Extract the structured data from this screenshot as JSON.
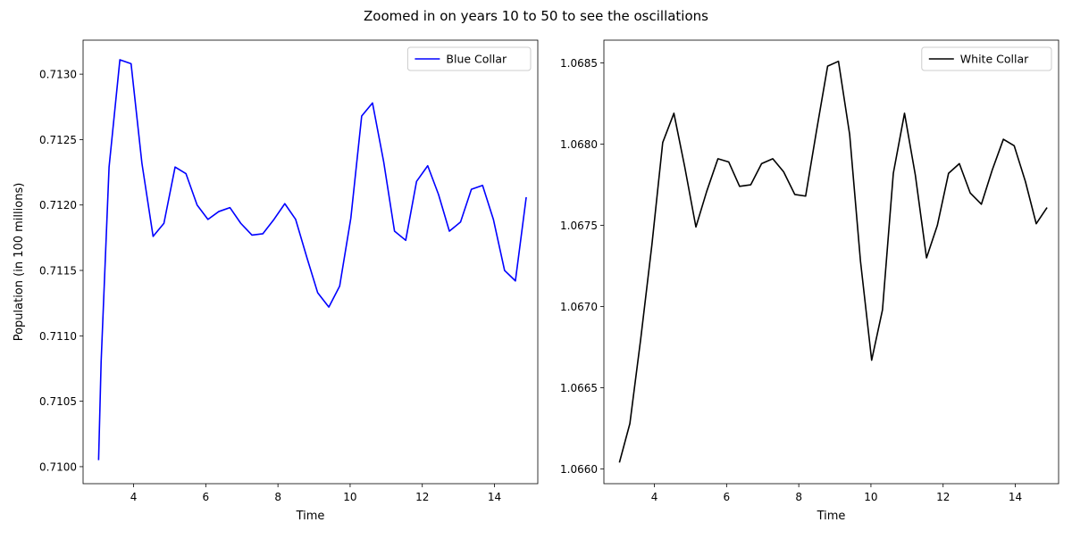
{
  "figure": {
    "suptitle": "Zoomed in on years 10 to 50 to see the oscillations"
  },
  "chart_data": [
    {
      "type": "line",
      "title": "",
      "xlabel": "Time",
      "ylabel": "Population (in 100 millions)",
      "xlim": [
        2.6,
        15.2
      ],
      "ylim": [
        0.70987,
        0.71326
      ],
      "xticks": [
        4,
        6,
        8,
        10,
        12,
        14
      ],
      "xtick_labels": [
        "4",
        "6",
        "8",
        "10",
        "12",
        "14"
      ],
      "yticks": [
        0.71,
        0.7105,
        0.711,
        0.7115,
        0.712,
        0.7125,
        0.713
      ],
      "ytick_labels": [
        "0.7100",
        "0.7105",
        "0.7110",
        "0.7115",
        "0.7120",
        "0.7125",
        "0.7130"
      ],
      "grid": false,
      "legend_position": "upper-right",
      "series": [
        {
          "name": "Blue Collar",
          "color": "#0000ff",
          "x": [
            3.03,
            3.1,
            3.32,
            3.62,
            3.93,
            4.23,
            4.54,
            4.84,
            5.15,
            5.45,
            5.76,
            6.06,
            6.36,
            6.67,
            6.97,
            7.28,
            7.58,
            7.89,
            8.19,
            8.49,
            8.8,
            9.1,
            9.41,
            9.71,
            10.02,
            10.32,
            10.62,
            10.93,
            11.23,
            11.54,
            11.84,
            12.15,
            12.45,
            12.75,
            13.06,
            13.36,
            13.67,
            13.97,
            14.28,
            14.58,
            14.88
          ],
          "values": [
            0.71005,
            0.7108,
            0.71229,
            0.71311,
            0.71308,
            0.71232,
            0.71176,
            0.71186,
            0.71229,
            0.71224,
            0.712,
            0.71189,
            0.71195,
            0.71198,
            0.71186,
            0.71177,
            0.71178,
            0.71189,
            0.71201,
            0.71189,
            0.7116,
            0.71133,
            0.71122,
            0.71138,
            0.7119,
            0.71268,
            0.71278,
            0.71233,
            0.7118,
            0.71173,
            0.71218,
            0.7123,
            0.71208,
            0.7118,
            0.71187,
            0.71212,
            0.71215,
            0.71189,
            0.7115,
            0.71142,
            0.71206
          ]
        }
      ]
    },
    {
      "type": "line",
      "title": "",
      "xlabel": "Time",
      "ylabel": "",
      "xlim": [
        2.6,
        15.2
      ],
      "ylim": [
        1.06591,
        1.06864
      ],
      "xticks": [
        4,
        6,
        8,
        10,
        12,
        14
      ],
      "xtick_labels": [
        "4",
        "6",
        "8",
        "10",
        "12",
        "14"
      ],
      "yticks": [
        1.066,
        1.0665,
        1.067,
        1.0675,
        1.068,
        1.0685
      ],
      "ytick_labels": [
        "1.0660",
        "1.0665",
        "1.0670",
        "1.0675",
        "1.0680",
        "1.0685"
      ],
      "grid": false,
      "legend_position": "upper-right",
      "series": [
        {
          "name": "White Collar",
          "color": "#000000",
          "x": [
            3.03,
            3.32,
            3.62,
            3.93,
            4.23,
            4.54,
            4.84,
            5.15,
            5.45,
            5.76,
            6.06,
            6.36,
            6.67,
            6.97,
            7.28,
            7.58,
            7.89,
            8.19,
            8.49,
            8.8,
            9.1,
            9.41,
            9.71,
            10.02,
            10.32,
            10.62,
            10.93,
            11.23,
            11.54,
            11.84,
            12.15,
            12.45,
            12.75,
            13.06,
            13.36,
            13.67,
            13.97,
            14.28,
            14.58,
            14.88
          ],
          "values": [
            1.06604,
            1.06628,
            1.0668,
            1.06738,
            1.06801,
            1.06819,
            1.06786,
            1.06749,
            1.06771,
            1.06791,
            1.06789,
            1.06774,
            1.06775,
            1.06788,
            1.06791,
            1.06783,
            1.06769,
            1.06768,
            1.06808,
            1.06848,
            1.06851,
            1.06806,
            1.06728,
            1.06667,
            1.06698,
            1.06782,
            1.06819,
            1.06781,
            1.0673,
            1.0675,
            1.06782,
            1.06788,
            1.0677,
            1.06763,
            1.06784,
            1.06803,
            1.06799,
            1.06777,
            1.06751,
            1.06761
          ]
        }
      ]
    }
  ]
}
